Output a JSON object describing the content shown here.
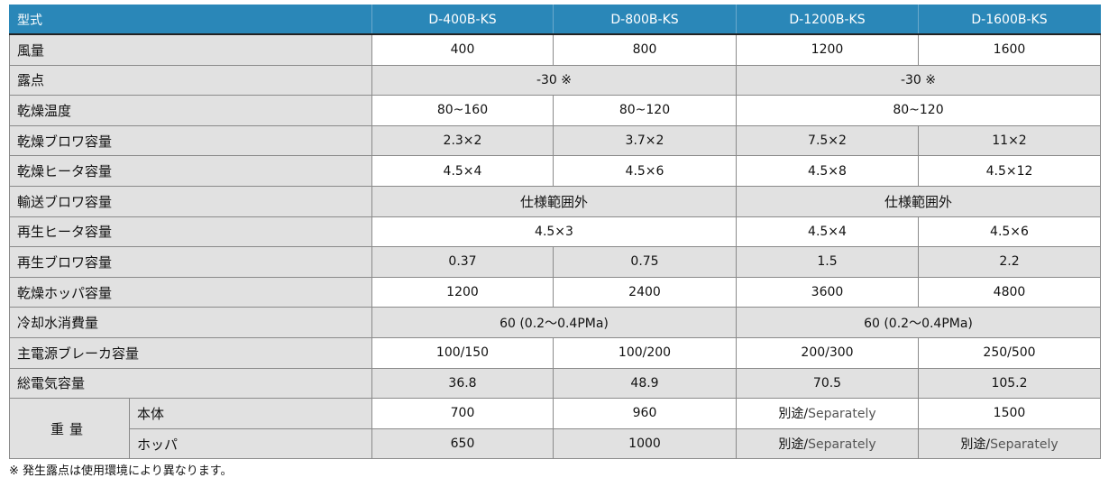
{
  "header": {
    "label": "型式",
    "models": [
      "D-400B-KS",
      "D-800B-KS",
      "D-1200B-KS",
      "D-1600B-KS"
    ]
  },
  "rows": {
    "air_volume": {
      "label": "風量",
      "values": [
        "400",
        "800",
        "1200",
        "1600"
      ]
    },
    "dew_point": {
      "label": "露点",
      "values": [
        "-30 ※",
        "-30 ※"
      ]
    },
    "drying_temp": {
      "label": "乾燥温度",
      "values": [
        "80~160",
        "80~120",
        "80~120"
      ]
    },
    "drying_blower": {
      "label": "乾燥ブロワ容量",
      "values": [
        "2.3×2",
        "3.7×2",
        "7.5×2",
        "11×2"
      ]
    },
    "drying_heater": {
      "label": "乾燥ヒータ容量",
      "values": [
        "4.5×4",
        "4.5×6",
        "4.5×8",
        "4.5×12"
      ]
    },
    "transport_blower": {
      "label": "輸送ブロワ容量",
      "values": [
        "仕様範囲外",
        "仕様範囲外"
      ]
    },
    "regen_heater": {
      "label": "再生ヒータ容量",
      "values": [
        "4.5×3",
        "4.5×4",
        "4.5×6"
      ]
    },
    "regen_blower": {
      "label": "再生ブロワ容量",
      "values": [
        "0.37",
        "0.75",
        "1.5",
        "2.2"
      ]
    },
    "drying_hopper": {
      "label": "乾燥ホッパ容量",
      "values": [
        "1200",
        "2400",
        "3600",
        "4800"
      ]
    },
    "cooling_water": {
      "label": "冷却水消費量",
      "values": [
        "60 (0.2～0.4PMa)",
        "60 (0.2～0.4PMa)"
      ]
    },
    "main_breaker": {
      "label": "主電源ブレーカ容量",
      "values": [
        "100/150",
        "100/200",
        "200/300",
        "250/500"
      ]
    },
    "total_power": {
      "label": "総電気容量",
      "values": [
        "36.8",
        "48.9",
        "70.5",
        "105.2"
      ]
    },
    "weight": {
      "label": "重量",
      "body": {
        "label": "本体",
        "values": [
          "700",
          "960",
          "1500"
        ]
      },
      "hopper": {
        "label": "ホッパ",
        "values": [
          "650",
          "1000"
        ]
      },
      "separately_jp": "別途/",
      "separately_en": "Separately"
    }
  },
  "note": "※ 発生露点は使用環境により異なります。"
}
